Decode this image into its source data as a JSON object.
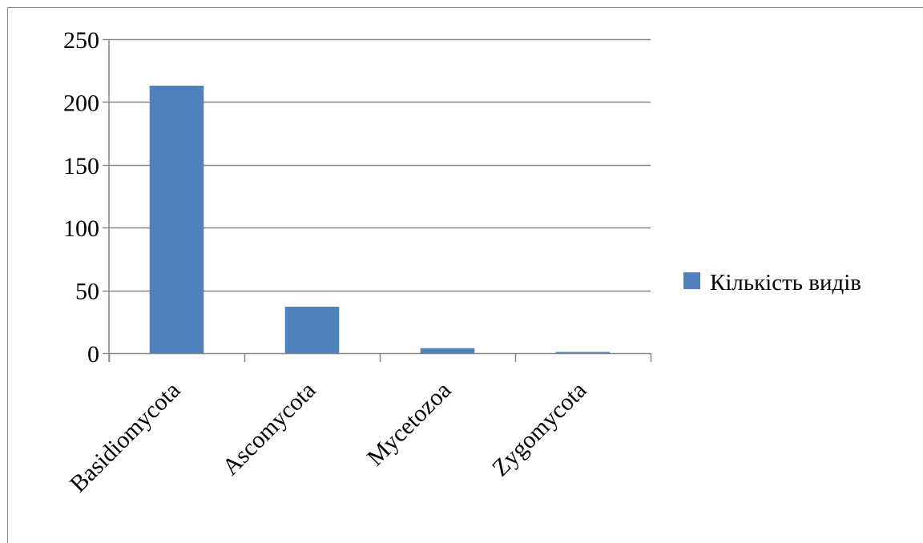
{
  "chart_data": {
    "type": "bar",
    "categories": [
      "Basidiomycota",
      "Ascomycota",
      "Mycetozoa",
      "Zygomycota"
    ],
    "series": [
      {
        "name": "Кількість видів",
        "values": [
          213,
          37,
          4,
          1
        ],
        "color": "#4f81bd"
      }
    ],
    "ylim": [
      0,
      250
    ],
    "yticks": [
      0,
      50,
      100,
      150,
      200,
      250
    ],
    "ytick_labels": [
      "0",
      "50",
      "100",
      "150",
      "200",
      "250"
    ],
    "grid": true,
    "legend_position": "right",
    "title": "",
    "xlabel": "",
    "ylabel": ""
  }
}
